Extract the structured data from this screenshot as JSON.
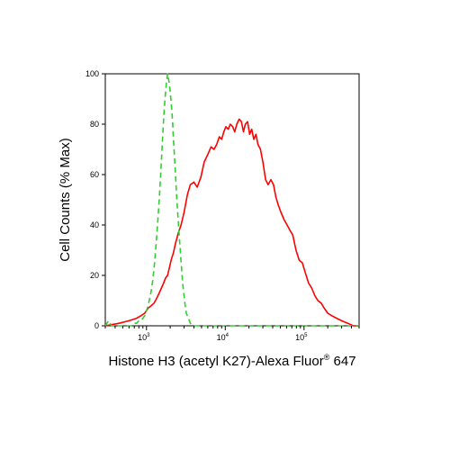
{
  "chart_data": {
    "type": "line",
    "xlabel": "Histone H3 (acetyl K27)-Alexa Fluor",
    "xlabel_superscript": "®",
    "xlabel_suffix": " 647",
    "ylabel": "Cell Counts (% Max)",
    "x_scale": "log",
    "xlim": [
      300,
      500000
    ],
    "ylim": [
      0,
      100
    ],
    "y_ticks": [
      "0",
      "20",
      "40",
      "60",
      "80",
      "100"
    ],
    "x_tick_labels": [
      {
        "base": "10",
        "exp": "3"
      },
      {
        "base": "10",
        "exp": "4"
      },
      {
        "base": "10",
        "exp": "5"
      }
    ],
    "grid": false,
    "legend": "none",
    "series": [
      {
        "color": "#ff0000",
        "style": "solid",
        "x": [
          300,
          450,
          600,
          750,
          850,
          950,
          1050,
          1150,
          1250,
          1350,
          1450,
          1550,
          1650,
          1750,
          1850,
          1950,
          2050,
          2200,
          2350,
          2550,
          2750,
          3000,
          3300,
          3600,
          4000,
          4400,
          4900,
          5400,
          6000,
          6600,
          7200,
          7800,
          8400,
          9000,
          9600,
          10200,
          10900,
          11600,
          12400,
          13200,
          14000,
          15000,
          16000,
          17000,
          18000,
          19200,
          20400,
          21700,
          23000,
          24500,
          26000,
          28000,
          30000,
          32500,
          35000,
          38000,
          41000,
          44000,
          47000,
          51000,
          56000,
          61000,
          66000,
          72000,
          79000,
          87000,
          95000,
          104000,
          114000,
          125000,
          137000,
          150000,
          165000,
          180000,
          200000,
          225000,
          260000,
          300000,
          360000,
          420000,
          500000
        ],
        "y": [
          0,
          1,
          2,
          3,
          4,
          5,
          7,
          8,
          9,
          11,
          13,
          15,
          17,
          19,
          20,
          23,
          26,
          29,
          33,
          37,
          40,
          45,
          52,
          56,
          57,
          55,
          59,
          65,
          68,
          71,
          70,
          72,
          75,
          74,
          77,
          79,
          78,
          80,
          79,
          77,
          80,
          82,
          81,
          77,
          80,
          81,
          76,
          78,
          74,
          76,
          72,
          70,
          65,
          58,
          56,
          58,
          56,
          51,
          48,
          45,
          42,
          40,
          38,
          36,
          30,
          26,
          25,
          21,
          17,
          15,
          12,
          10,
          9,
          7,
          5,
          4,
          3,
          2,
          1,
          0,
          0
        ]
      },
      {
        "color": "#33cc33",
        "style": "dashed",
        "x": [
          300,
          330,
          360,
          400,
          450,
          500,
          550,
          600,
          650,
          700,
          750,
          800,
          850,
          900,
          950,
          1000,
          1050,
          1100,
          1150,
          1200,
          1250,
          1300,
          1350,
          1400,
          1450,
          1500,
          1550,
          1600,
          1650,
          1700,
          1750,
          1800,
          1850,
          1900,
          1950,
          2000,
          2050,
          2100,
          2150,
          2200,
          2300,
          2400,
          2500,
          2600,
          2700,
          2800,
          2900,
          3000,
          3100,
          3200,
          3400,
          3600,
          3900,
          4300,
          5000,
          10000,
          100000,
          500000
        ],
        "y": [
          0,
          2,
          0,
          0,
          0,
          0,
          0,
          0,
          0,
          1,
          1,
          2,
          2,
          3,
          4,
          6,
          8,
          11,
          14,
          18,
          23,
          29,
          36,
          43,
          50,
          58,
          66,
          74,
          82,
          88,
          93,
          97,
          100,
          98,
          96,
          93,
          89,
          85,
          80,
          74,
          64,
          53,
          44,
          36,
          29,
          22,
          16,
          12,
          8,
          5,
          3,
          1,
          0,
          0,
          0,
          0,
          0,
          0
        ]
      }
    ]
  }
}
